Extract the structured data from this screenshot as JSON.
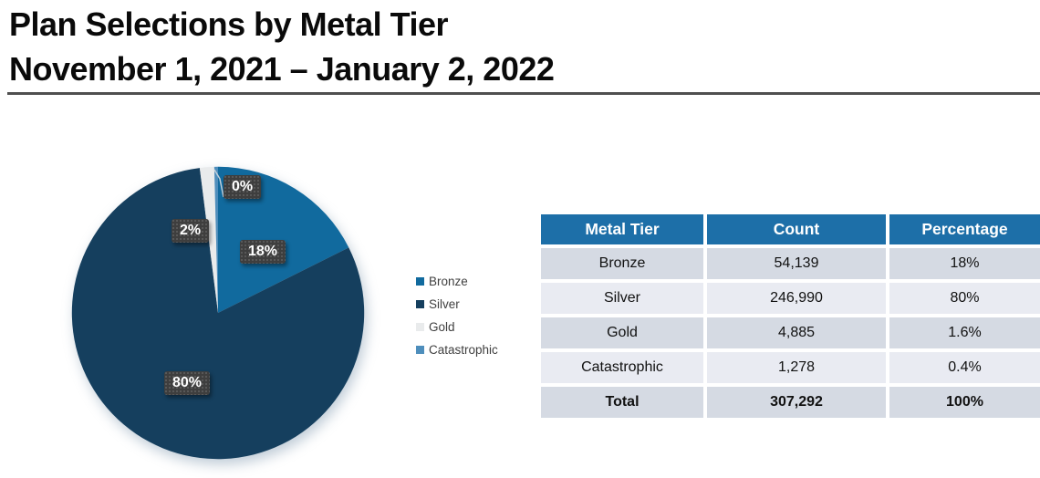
{
  "page": {
    "title_line1": "Plan Selections by Metal Tier",
    "title_line2": "November 1, 2021 – January 2, 2022"
  },
  "colors": {
    "header_bg": "#1d6fa8",
    "row_odd": "#d5dae3",
    "row_even": "#e9ebf2",
    "label_bg": "#3e3e3e",
    "title_rule": "#4f4f4f"
  },
  "chart_data": {
    "type": "pie",
    "title": "Plan Selections by Metal Tier",
    "subtitle": "November 1, 2021 – January 2, 2022",
    "start_angle": "12 o'clock",
    "direction": "clockwise",
    "legend_position": "right",
    "categories": [
      "Bronze",
      "Silver",
      "Gold",
      "Catastrophic"
    ],
    "slices": [
      {
        "name": "Bronze",
        "count": 54139,
        "value": 17.62,
        "label": "18%",
        "color": "#116a9e"
      },
      {
        "name": "Silver",
        "count": 246990,
        "value": 80.38,
        "label": "80%",
        "color": "#153f5e"
      },
      {
        "name": "Gold",
        "count": 4885,
        "value": 1.59,
        "label": "2%",
        "color": "#e9ebec"
      },
      {
        "name": "Catastrophic",
        "count": 1278,
        "value": 0.41,
        "label": "0%",
        "color": "#4e8ebc"
      }
    ]
  },
  "legend": {
    "items": [
      {
        "label": "Bronze"
      },
      {
        "label": "Silver"
      },
      {
        "label": "Gold"
      },
      {
        "label": "Catastrophic"
      }
    ]
  },
  "table": {
    "headers": [
      "Metal Tier",
      "Count",
      "Percentage"
    ],
    "rows": [
      {
        "tier": "Bronze",
        "count": "54,139",
        "pct": "18%"
      },
      {
        "tier": "Silver",
        "count": "246,990",
        "pct": "80%"
      },
      {
        "tier": "Gold",
        "count": "4,885",
        "pct": "1.6%"
      },
      {
        "tier": "Catastrophic",
        "count": "1,278",
        "pct": "0.4%"
      }
    ],
    "total": {
      "tier": "Total",
      "count": "307,292",
      "pct": "100%"
    }
  }
}
